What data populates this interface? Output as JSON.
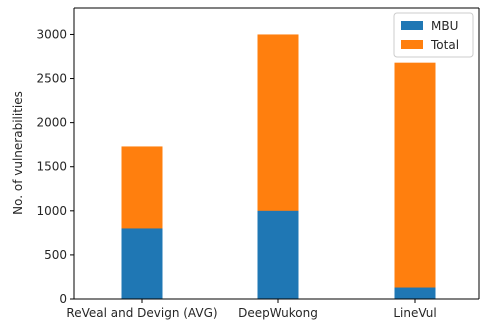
{
  "chart_data": {
    "type": "bar",
    "stacked": true,
    "title": "",
    "xlabel": "",
    "ylabel": "No. of vulnerabilities",
    "categories": [
      "ReVeal and Devign (AVG)",
      "DeepWukong",
      "LineVul"
    ],
    "series": [
      {
        "name": "MBU",
        "color": "#1f77b4",
        "values": [
          800,
          1000,
          130
        ]
      },
      {
        "name": "Total",
        "color": "#ff7f0e",
        "values": [
          1730,
          3000,
          2680
        ]
      }
    ],
    "ylim": [
      0,
      3300
    ],
    "yticks": [
      0,
      500,
      1000,
      1500,
      2000,
      2500,
      3000
    ],
    "grid": false,
    "legend_position": "top-right"
  }
}
